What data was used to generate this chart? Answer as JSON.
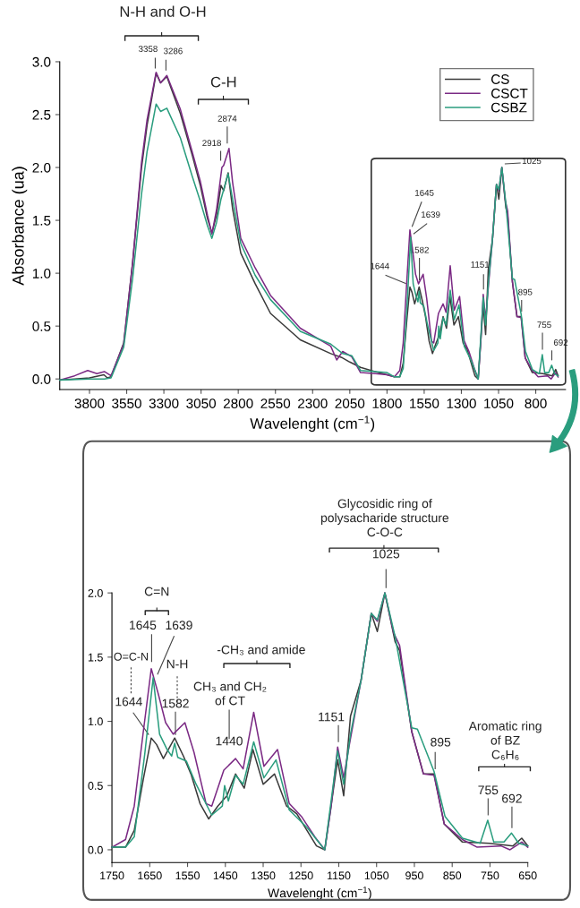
{
  "chart_data": [
    {
      "type": "line",
      "xlabel": "Wavelenght (cm$^{−1}$)",
      "ylabel": "Absorbance (ua)",
      "xlim": [
        4000,
        600
      ],
      "ylim": [
        -0.1,
        3.0
      ],
      "xticks": [
        3800,
        3550,
        3300,
        3050,
        2800,
        2550,
        2300,
        2050,
        1800,
        1550,
        1300,
        1050,
        800
      ],
      "yticks": [
        {
          "value": 0,
          "label": "0.0"
        },
        0.5,
        {
          "value": 1,
          "label": "1.0"
        },
        1.5,
        {
          "value": 2,
          "label": "2.0"
        },
        2.5,
        {
          "value": 3,
          "label": "3.0"
        }
      ],
      "legend": "top right",
      "series": [
        {
          "name": "CS",
          "color": "#3a3a3a",
          "x": [
            4000,
            3900,
            3800,
            3703,
            3680,
            3655,
            3570,
            3510,
            3450,
            3413,
            3352,
            3322,
            3280,
            3189,
            3110,
            3055,
            3007,
            2977,
            2946,
            2916,
            2898,
            2868,
            2838,
            2783,
            2686,
            2583,
            2383,
            2178,
            2100,
            2050,
            1978,
            1857,
            1800,
            1750,
            1714,
            1691,
            1667,
            1646,
            1632,
            1614,
            1584,
            1561,
            1541,
            1517,
            1494,
            1470,
            1446,
            1423,
            1400,
            1377,
            1350,
            1320,
            1288,
            1261,
            1209,
            1187,
            1153,
            1137,
            1119,
            1091,
            1064,
            1048,
            1028,
            1001,
            989,
            957,
            926,
            898,
            871,
            823,
            752,
            689,
            666,
            650
          ],
          "values": [
            -0.01,
            0.0,
            0.01,
            0.04,
            0.01,
            0.02,
            0.34,
            1.1,
            2.0,
            2.4,
            2.89,
            2.8,
            2.86,
            2.51,
            2.12,
            1.83,
            1.52,
            1.38,
            1.55,
            1.83,
            1.78,
            1.95,
            1.61,
            1.19,
            0.9,
            0.62,
            0.37,
            0.24,
            0.2,
            0.16,
            0.11,
            0.06,
            0.04,
            0.02,
            0.02,
            0.15,
            0.55,
            0.87,
            0.82,
            0.71,
            0.87,
            0.73,
            0.59,
            0.36,
            0.24,
            0.34,
            0.42,
            0.59,
            0.48,
            0.78,
            0.51,
            0.59,
            0.34,
            0.28,
            0.03,
            0.0,
            0.7,
            0.42,
            1.04,
            1.32,
            1.84,
            1.7,
            2.0,
            1.62,
            1.55,
            0.92,
            0.59,
            0.59,
            0.2,
            0.06,
            0.05,
            0.03,
            0.09,
            0.03
          ]
        },
        {
          "name": "CSCT",
          "color": "#7b2a84",
          "x": [
            4000,
            3900,
            3812,
            3750,
            3700,
            3655,
            3570,
            3510,
            3450,
            3413,
            3352,
            3322,
            3280,
            3189,
            3110,
            3055,
            3007,
            2977,
            2946,
            2910,
            2898,
            2862,
            2838,
            2783,
            2686,
            2583,
            2383,
            2178,
            2138,
            2098,
            2037,
            1978,
            1877,
            1800,
            1750,
            1714,
            1691,
            1667,
            1646,
            1628,
            1608,
            1588,
            1557,
            1533,
            1501,
            1486,
            1454,
            1423,
            1403,
            1375,
            1348,
            1312,
            1281,
            1249,
            1213,
            1187,
            1170,
            1153,
            1137,
            1123,
            1091,
            1064,
            1048,
            1028,
            1005,
            989,
            957,
            926,
            898,
            871,
            823,
            784,
            721,
            697,
            666,
            650
          ],
          "values": [
            -0.01,
            0.03,
            0.08,
            0.05,
            0.07,
            0.03,
            0.33,
            1.1,
            2.05,
            2.45,
            2.9,
            2.8,
            2.87,
            2.55,
            2.15,
            1.87,
            1.55,
            1.37,
            1.6,
            2.0,
            2.02,
            2.18,
            1.86,
            1.33,
            1.05,
            0.79,
            0.48,
            0.31,
            0.18,
            0.26,
            0.21,
            0.06,
            0.05,
            0.04,
            0.02,
            0.08,
            0.34,
            0.92,
            1.41,
            1.22,
            0.99,
            0.9,
            0.99,
            0.76,
            0.36,
            0.34,
            0.62,
            0.71,
            0.63,
            1.07,
            0.65,
            0.78,
            0.36,
            0.26,
            0.1,
            0.0,
            0.34,
            0.8,
            0.56,
            0.8,
            1.32,
            1.84,
            1.78,
            2.0,
            1.69,
            1.59,
            0.92,
            0.59,
            0.58,
            0.2,
            0.08,
            0.02,
            0.03,
            0.0,
            0.06,
            0.02
          ]
        },
        {
          "name": "CSBZ",
          "color": "#2a9d7e",
          "x": [
            4000,
            3800,
            3700,
            3655,
            3570,
            3510,
            3450,
            3413,
            3352,
            3322,
            3280,
            3189,
            3110,
            3055,
            3007,
            2977,
            2946,
            2916,
            2868,
            2838,
            2783,
            2686,
            2583,
            2383,
            2178,
            2098,
            2037,
            1978,
            1877,
            1800,
            1750,
            1714,
            1691,
            1663,
            1641,
            1624,
            1604,
            1592,
            1584,
            1576,
            1553,
            1529,
            1486,
            1458,
            1452,
            1442,
            1423,
            1403,
            1375,
            1348,
            1316,
            1281,
            1233,
            1209,
            1187,
            1153,
            1137,
            1119,
            1091,
            1064,
            1048,
            1028,
            1001,
            957,
            942,
            898,
            869,
            823,
            776,
            756,
            740,
            713,
            693,
            674,
            650
          ],
          "values": [
            -0.01,
            0.0,
            0.0,
            0.01,
            0.3,
            0.95,
            1.75,
            2.15,
            2.6,
            2.53,
            2.56,
            2.28,
            1.92,
            1.68,
            1.45,
            1.33,
            1.48,
            1.7,
            1.94,
            1.7,
            1.28,
            0.98,
            0.75,
            0.45,
            0.33,
            0.24,
            0.22,
            0.08,
            0.07,
            0.06,
            0.02,
            0.02,
            0.1,
            0.75,
            1.34,
            0.9,
            0.78,
            0.73,
            0.83,
            0.72,
            0.69,
            0.52,
            0.27,
            0.34,
            0.5,
            0.38,
            0.58,
            0.51,
            0.84,
            0.56,
            0.7,
            0.31,
            0.17,
            0.08,
            0.0,
            0.77,
            0.51,
            0.9,
            1.32,
            1.84,
            1.79,
            2.0,
            1.66,
            0.95,
            0.94,
            0.61,
            0.26,
            0.09,
            0.05,
            0.23,
            0.06,
            0.06,
            0.13,
            0.05,
            0.03
          ]
        }
      ],
      "annotations": [
        "N-H and O-H",
        {
          "text": "3358",
          "x": 3358,
          "y": 2.89
        },
        {
          "text": "3286",
          "x": 3286,
          "y": 2.87
        },
        "C-H",
        {
          "text": "2918",
          "x": 2918,
          "y": 2.0
        },
        {
          "text": "2874",
          "x": 2874,
          "y": 2.18
        },
        {
          "text": "1645",
          "x": 1645,
          "y": 1.41
        },
        {
          "text": "1639",
          "x": 1639,
          "y": 1.34
        },
        {
          "text": "1644",
          "x": 1644,
          "y": 0.87
        },
        {
          "text": "1582",
          "x": 1582,
          "y": 0.87
        },
        {
          "text": "1151",
          "x": 1151,
          "y": 0.8
        },
        {
          "text": "1025",
          "x": 1025,
          "y": 2.0
        },
        {
          "text": "895",
          "x": 895,
          "y": 0.59
        },
        {
          "text": "755",
          "x": 755,
          "y": 0.23
        },
        {
          "text": "692",
          "x": 692,
          "y": 0.13
        }
      ]
    },
    {
      "type": "line",
      "xlabel": "Wavelenght (cm$^{−1}$)",
      "xlim": [
        1750,
        650
      ],
      "ylim": [
        -0.1,
        2.0
      ],
      "xticks": [
        1750,
        1650,
        1550,
        1450,
        1350,
        1250,
        1150,
        1050,
        950,
        850,
        750,
        650
      ],
      "yticks": [
        {
          "value": 0,
          "label": "0.0"
        },
        0.5,
        {
          "value": 1,
          "label": "1.0"
        },
        1.5,
        {
          "value": 2,
          "label": "2.0"
        }
      ],
      "series": [
        {
          "color": "#3a3a3a",
          "x": [
            1750,
            1714,
            1691,
            1667,
            1646,
            1632,
            1614,
            1584,
            1561,
            1541,
            1517,
            1494,
            1470,
            1446,
            1423,
            1400,
            1377,
            1350,
            1320,
            1288,
            1261,
            1209,
            1187,
            1153,
            1137,
            1119,
            1091,
            1064,
            1048,
            1028,
            1001,
            989,
            957,
            926,
            898,
            871,
            823,
            752,
            689,
            666,
            650
          ],
          "values": [
            0.02,
            0.02,
            0.15,
            0.55,
            0.87,
            0.82,
            0.71,
            0.87,
            0.73,
            0.59,
            0.36,
            0.24,
            0.34,
            0.42,
            0.59,
            0.48,
            0.78,
            0.51,
            0.59,
            0.34,
            0.28,
            0.03,
            0.0,
            0.7,
            0.42,
            1.04,
            1.32,
            1.84,
            1.7,
            2.0,
            1.62,
            1.55,
            0.92,
            0.59,
            0.59,
            0.2,
            0.06,
            0.05,
            0.03,
            0.09,
            0.03
          ]
        },
        {
          "color": "#7b2a84",
          "x": [
            1750,
            1714,
            1691,
            1667,
            1646,
            1628,
            1608,
            1588,
            1557,
            1533,
            1501,
            1486,
            1454,
            1423,
            1403,
            1375,
            1348,
            1312,
            1281,
            1249,
            1213,
            1187,
            1170,
            1153,
            1137,
            1123,
            1091,
            1064,
            1048,
            1028,
            1005,
            989,
            957,
            926,
            898,
            871,
            823,
            784,
            721,
            697,
            666,
            650
          ],
          "values": [
            0.02,
            0.08,
            0.34,
            0.92,
            1.41,
            1.22,
            0.99,
            0.9,
            0.99,
            0.76,
            0.36,
            0.34,
            0.62,
            0.71,
            0.63,
            1.07,
            0.65,
            0.78,
            0.36,
            0.26,
            0.1,
            0.0,
            0.34,
            0.8,
            0.56,
            0.8,
            1.32,
            1.84,
            1.78,
            2.0,
            1.69,
            1.59,
            0.92,
            0.59,
            0.58,
            0.2,
            0.08,
            0.02,
            0.03,
            0.0,
            0.06,
            0.02
          ]
        },
        {
          "color": "#2a9d7e",
          "x": [
            1750,
            1714,
            1691,
            1663,
            1641,
            1624,
            1604,
            1592,
            1584,
            1576,
            1553,
            1529,
            1486,
            1458,
            1452,
            1442,
            1423,
            1403,
            1375,
            1348,
            1316,
            1281,
            1233,
            1209,
            1187,
            1153,
            1137,
            1119,
            1091,
            1064,
            1048,
            1028,
            1001,
            957,
            942,
            898,
            869,
            823,
            776,
            756,
            740,
            713,
            693,
            674,
            650
          ],
          "values": [
            0.02,
            0.02,
            0.1,
            0.75,
            1.34,
            0.9,
            0.78,
            0.73,
            0.83,
            0.72,
            0.69,
            0.52,
            0.27,
            0.34,
            0.5,
            0.38,
            0.58,
            0.51,
            0.84,
            0.56,
            0.7,
            0.31,
            0.17,
            0.08,
            0.0,
            0.77,
            0.51,
            0.9,
            1.32,
            1.84,
            1.79,
            2.0,
            1.66,
            0.95,
            0.94,
            0.61,
            0.26,
            0.09,
            0.05,
            0.23,
            0.06,
            0.06,
            0.13,
            0.05,
            0.03
          ]
        }
      ],
      "annotations": [
        "C=N",
        {
          "text": "1645",
          "x": 1645,
          "y": 1.41
        },
        {
          "text": "1639",
          "x": 1639,
          "y": 1.34
        },
        "O=C-N",
        {
          "text": "1644",
          "x": 1644,
          "y": 0.87
        },
        "N-H",
        {
          "text": "1582",
          "x": 1582,
          "y": 0.87
        },
        "-CH₃ and amide",
        "CH₃ and CH₂\nof CT",
        {
          "text": "1440",
          "x": 1440,
          "y": 0.71
        },
        {
          "text": "1151",
          "x": 1151,
          "y": 0.8
        },
        "Glycosidic ring of\npolysacharide structure\nC-O-C",
        {
          "text": "1025",
          "x": 1025,
          "y": 2.0
        },
        {
          "text": "895",
          "x": 895,
          "y": 0.59
        },
        "Aromatic ring\nof BZ\nC₆H₆",
        {
          "text": "755",
          "x": 755,
          "y": 0.23
        },
        {
          "text": "692",
          "x": 692,
          "y": 0.13
        }
      ]
    }
  ]
}
